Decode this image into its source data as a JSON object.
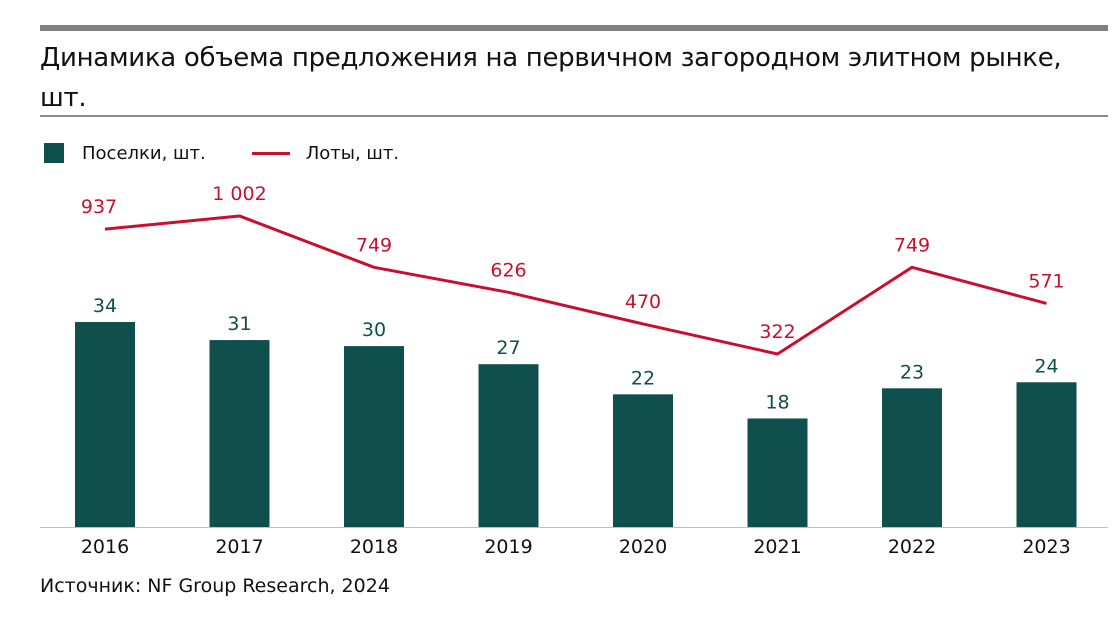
{
  "title": "Динамика объема предложения на первичном загородном элитном рынке, шт.",
  "source": "Источник: NF Group Research, 2024",
  "colors": {
    "bars": "#0f4f4d",
    "line": "#c8102e",
    "rule": "#808080"
  },
  "chart_data": {
    "type": "bar+line",
    "title": "Динамика объема предложения на первичном загородном элитном рынке, шт.",
    "categories": [
      "2016",
      "2017",
      "2018",
      "2019",
      "2020",
      "2021",
      "2022",
      "2023"
    ],
    "legend_position": "top-left",
    "grid": false,
    "series": [
      {
        "name": "Поселки, шт.",
        "type": "bar",
        "values": [
          34,
          31,
          30,
          27,
          22,
          18,
          23,
          24
        ],
        "labels": [
          "34",
          "31",
          "30",
          "27",
          "22",
          "18",
          "23",
          "24"
        ]
      },
      {
        "name": "Лоты, шт.",
        "type": "line",
        "values": [
          937,
          1002,
          749,
          626,
          470,
          322,
          749,
          571
        ],
        "labels": [
          "937",
          "1 002",
          "749",
          "626",
          "470",
          "322",
          "749",
          "571"
        ]
      }
    ]
  }
}
